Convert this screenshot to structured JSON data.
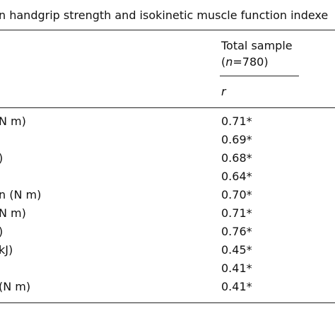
{
  "header": {
    "title": "n handgrip strength and isokinetic muscle function indexe"
  },
  "table": {
    "column_header": {
      "name": "Total sample",
      "n_prefix": "(",
      "n_symbol": "n",
      "n_value": "=780)",
      "statistic": "r"
    },
    "rows": [
      [
        "N m)",
        "0.71*"
      ],
      [
        null,
        "0.69*"
      ],
      [
        ")",
        "0.68*"
      ],
      [
        null,
        "0.64*"
      ],
      [
        "n (N m)",
        "0.70*"
      ],
      [
        "N m)",
        "0.71*"
      ],
      [
        ")",
        "0.76*"
      ],
      [
        "kJ)",
        "0.45*"
      ],
      [
        null,
        "0.41*"
      ],
      [
        "(N m)",
        "0.41*"
      ]
    ]
  }
}
